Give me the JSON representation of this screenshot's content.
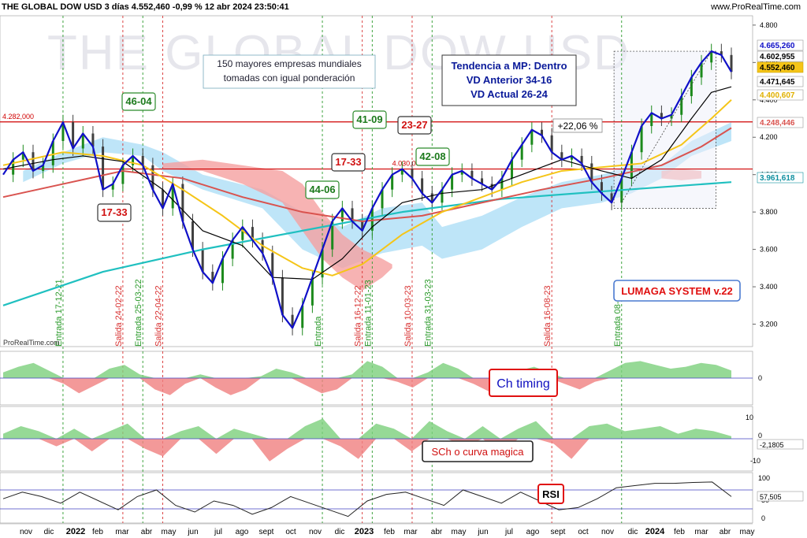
{
  "header": {
    "title": "THE GLOBAL DOW USD 3 días 4.552,460 -0,99 % 12 abr 2024 23:50:41",
    "source": "www.ProRealTime.com"
  },
  "watermark": "THE GLOBAL DOW USD",
  "credit": "ProRealTime.com",
  "colors": {
    "price_line": "#1010c8",
    "candles": "#1c8a1c",
    "sma_black": "#000000",
    "sma_yellow": "#f5c518",
    "sma_red": "#d9534f",
    "sma_teal": "#20c0c0",
    "cloud_blue": "#a8dcf5",
    "cloud_red": "#f5a0a0",
    "entry_line": "#2a9a2a",
    "exit_line": "#d83030",
    "hline": "#d00000",
    "osc_pos": "#7ccf7c",
    "osc_neg": "#f08080",
    "ref_line": "#4040c0"
  },
  "annotations": {
    "info_box": [
      "150 mayores empresas mundiales",
      "tomadas con igual ponderación"
    ],
    "trend_box": [
      "Tendencia a MP: Dentro",
      "VD Anterior 34-16",
      "VD Actual 26-24"
    ],
    "system_box": "LUMAGA SYSTEM v.22",
    "gain_label": "+22,06 %",
    "hline1_label": "4.282,000",
    "hline2_label": "4.030,000",
    "ch_timing": "Ch timing",
    "sch_label": "SCh o curva magica",
    "rsi_label": "RSI",
    "scores": [
      {
        "text": "46-04",
        "kind": "green"
      },
      {
        "text": "17-33",
        "kind": "red"
      },
      {
        "text": "44-06",
        "kind": "green"
      },
      {
        "text": "17-33",
        "kind": "red"
      },
      {
        "text": "41-09",
        "kind": "green"
      },
      {
        "text": "23-27",
        "kind": "red"
      },
      {
        "text": "42-08",
        "kind": "green"
      }
    ]
  },
  "signals": [
    {
      "label": "Entrada 17-12-21",
      "kind": "entry"
    },
    {
      "label": "Salida 24-02-22",
      "kind": "exit"
    },
    {
      "label": "Entrada 25-03-22",
      "kind": "entry"
    },
    {
      "label": "Salida 22-04-22",
      "kind": "exit"
    },
    {
      "label": "Entrada",
      "kind": "entry"
    },
    {
      "label": "Salida 16-12-22",
      "kind": "exit"
    },
    {
      "label": "Entrada 11-01-23",
      "kind": "entry"
    },
    {
      "label": "Salida 10-03-23",
      "kind": "exit"
    },
    {
      "label": "Entrada 31-03-23",
      "kind": "entry"
    },
    {
      "label": "Salida 16-08-23",
      "kind": "exit"
    },
    {
      "label": "Entrada 08-11-23",
      "kind": "entry"
    }
  ],
  "chart_data": {
    "type": "line",
    "title": "THE GLOBAL DOW USD",
    "x_tick_labels": [
      "nov",
      "dic",
      "2022",
      "feb",
      "mar",
      "abr",
      "may",
      "jun",
      "jul",
      "ago",
      "sept",
      "oct",
      "nov",
      "dic",
      "2023",
      "feb",
      "mar",
      "abr",
      "may",
      "jun",
      "jul",
      "ago",
      "sept",
      "oct",
      "nov",
      "dic",
      "2024",
      "feb",
      "mar",
      "abr",
      "may"
    ],
    "price_axis": {
      "ticks": [
        "4.800",
        "4.600",
        "4.400",
        "4.200",
        "4.000",
        "3.800",
        "3.600",
        "3.400",
        "3.200"
      ],
      "ylim": [
        3.08,
        4.85
      ],
      "tags": [
        {
          "text": "4.665,260",
          "style": "blue"
        },
        {
          "text": "4.602,955",
          "style": "black"
        },
        {
          "text": "4.552,460",
          "style": "yellow"
        },
        {
          "text": "4.471,645",
          "style": "black"
        },
        {
          "text": "4.400,607",
          "style": "yellowtext"
        },
        {
          "text": "4.248,446",
          "style": "redtext"
        },
        {
          "text": "3.961,618",
          "style": "tealtext"
        }
      ]
    },
    "series": [
      {
        "name": "THE GLOBAL DOW USD",
        "points": [
          [
            0,
            4.0
          ],
          [
            1,
            4.08
          ],
          [
            2,
            4.12
          ],
          [
            3,
            4.02
          ],
          [
            4,
            4.05
          ],
          [
            5,
            4.18
          ],
          [
            6,
            4.28
          ],
          [
            7,
            4.14
          ],
          [
            8,
            4.22
          ],
          [
            9,
            4.15
          ],
          [
            10,
            3.92
          ],
          [
            11,
            3.95
          ],
          [
            12,
            4.05
          ],
          [
            13,
            4.1
          ],
          [
            14,
            4.05
          ],
          [
            15,
            3.92
          ],
          [
            16,
            3.82
          ],
          [
            17,
            3.95
          ],
          [
            18,
            3.75
          ],
          [
            19,
            3.6
          ],
          [
            20,
            3.48
          ],
          [
            21,
            3.42
          ],
          [
            22,
            3.55
          ],
          [
            23,
            3.65
          ],
          [
            24,
            3.72
          ],
          [
            25,
            3.65
          ],
          [
            26,
            3.58
          ],
          [
            27,
            3.45
          ],
          [
            28,
            3.25
          ],
          [
            29,
            3.18
          ],
          [
            30,
            3.3
          ],
          [
            31,
            3.45
          ],
          [
            32,
            3.6
          ],
          [
            33,
            3.75
          ],
          [
            34,
            3.82
          ],
          [
            35,
            3.75
          ],
          [
            36,
            3.7
          ],
          [
            37,
            3.82
          ],
          [
            38,
            3.92
          ],
          [
            39,
            4.0
          ],
          [
            40,
            4.03
          ],
          [
            41,
            3.98
          ],
          [
            42,
            3.9
          ],
          [
            43,
            3.85
          ],
          [
            44,
            3.92
          ],
          [
            45,
            4.0
          ],
          [
            46,
            4.02
          ],
          [
            47,
            3.98
          ],
          [
            48,
            3.95
          ],
          [
            49,
            3.92
          ],
          [
            50,
            3.98
          ],
          [
            51,
            4.08
          ],
          [
            52,
            4.16
          ],
          [
            53,
            4.24
          ],
          [
            54,
            4.21
          ],
          [
            55,
            4.12
          ],
          [
            56,
            4.08
          ],
          [
            57,
            4.1
          ],
          [
            58,
            4.06
          ],
          [
            59,
            3.96
          ],
          [
            60,
            3.9
          ],
          [
            61,
            3.85
          ],
          [
            62,
            3.98
          ],
          [
            63,
            4.12
          ],
          [
            64,
            4.26
          ],
          [
            65,
            4.33
          ],
          [
            66,
            4.3
          ],
          [
            67,
            4.32
          ],
          [
            68,
            4.42
          ],
          [
            69,
            4.52
          ],
          [
            70,
            4.6
          ],
          [
            71,
            4.66
          ],
          [
            72,
            4.64
          ],
          [
            73,
            4.55
          ]
        ]
      },
      {
        "name": "",
        "points": [
          [
            0,
            4.03
          ],
          [
            5,
            4.08
          ],
          [
            8,
            4.1
          ],
          [
            12,
            4.07
          ],
          [
            16,
            3.92
          ],
          [
            20,
            3.7
          ],
          [
            24,
            3.62
          ],
          [
            27,
            3.45
          ],
          [
            31,
            3.44
          ],
          [
            34,
            3.55
          ],
          [
            37,
            3.72
          ],
          [
            40,
            3.85
          ],
          [
            44,
            3.9
          ],
          [
            48,
            3.92
          ],
          [
            52,
            4.0
          ],
          [
            56,
            4.08
          ],
          [
            60,
            4.02
          ],
          [
            63,
            3.98
          ],
          [
            66,
            4.08
          ],
          [
            69,
            4.3
          ],
          [
            71,
            4.44
          ],
          [
            73,
            4.47
          ]
        ]
      },
      {
        "name": "",
        "points": [
          [
            0,
            4.05
          ],
          [
            6,
            4.12
          ],
          [
            10,
            4.1
          ],
          [
            14,
            4.05
          ],
          [
            18,
            3.92
          ],
          [
            22,
            3.78
          ],
          [
            26,
            3.62
          ],
          [
            30,
            3.5
          ],
          [
            33,
            3.46
          ],
          [
            36,
            3.52
          ],
          [
            40,
            3.68
          ],
          [
            44,
            3.8
          ],
          [
            48,
            3.88
          ],
          [
            52,
            3.96
          ],
          [
            56,
            4.02
          ],
          [
            60,
            4.04
          ],
          [
            64,
            4.06
          ],
          [
            68,
            4.16
          ],
          [
            71,
            4.3
          ],
          [
            73,
            4.4
          ]
        ]
      },
      {
        "name": "",
        "points": [
          [
            0,
            3.88
          ],
          [
            6,
            3.95
          ],
          [
            12,
            4.02
          ],
          [
            18,
            3.98
          ],
          [
            24,
            3.88
          ],
          [
            30,
            3.8
          ],
          [
            36,
            3.75
          ],
          [
            42,
            3.78
          ],
          [
            48,
            3.85
          ],
          [
            54,
            3.92
          ],
          [
            60,
            3.98
          ],
          [
            66,
            4.05
          ],
          [
            70,
            4.15
          ],
          [
            73,
            4.25
          ]
        ]
      },
      {
        "name": "",
        "points": [
          [
            0,
            3.3
          ],
          [
            10,
            3.48
          ],
          [
            20,
            3.6
          ],
          [
            30,
            3.7
          ],
          [
            40,
            3.8
          ],
          [
            50,
            3.87
          ],
          [
            60,
            3.91
          ],
          [
            73,
            3.96
          ]
        ]
      }
    ],
    "horizontal_lines": [
      4.282,
      4.03
    ],
    "panels": [
      {
        "name": "Ch timing",
        "ticks": [
          "0"
        ]
      },
      {
        "name": "SCh o curva magica",
        "ticks": [
          "10",
          "0",
          "-10"
        ],
        "value_tag": "-2,1805"
      },
      {
        "name": "RSI",
        "ticks": [
          "100",
          "50",
          "0"
        ],
        "value_tag": "57,505"
      }
    ]
  }
}
